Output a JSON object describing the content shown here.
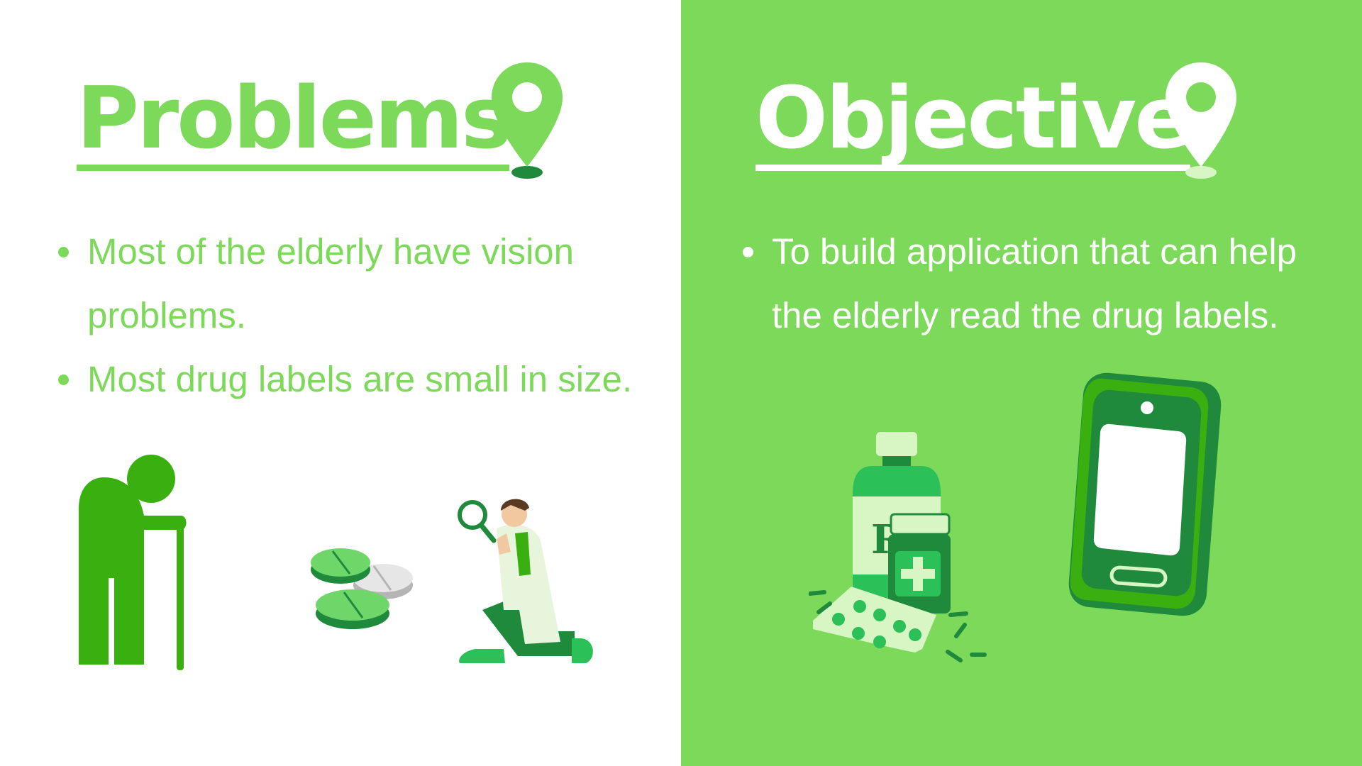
{
  "problems": {
    "title": "Problems",
    "icon": "map-pin-icon",
    "items": [
      "Most of the elderly have vision problems.",
      "Most drug labels are small in size."
    ]
  },
  "objective": {
    "title": "Objective",
    "icon": "map-pin-icon",
    "items": [
      "To build application that can help the elderly read the drug labels."
    ]
  },
  "colors": {
    "accent_green": "#7dd95a",
    "dark_green": "#1f8a3c",
    "mid_green": "#3ab010",
    "light_green": "#d8f5c4",
    "white": "#ffffff"
  }
}
